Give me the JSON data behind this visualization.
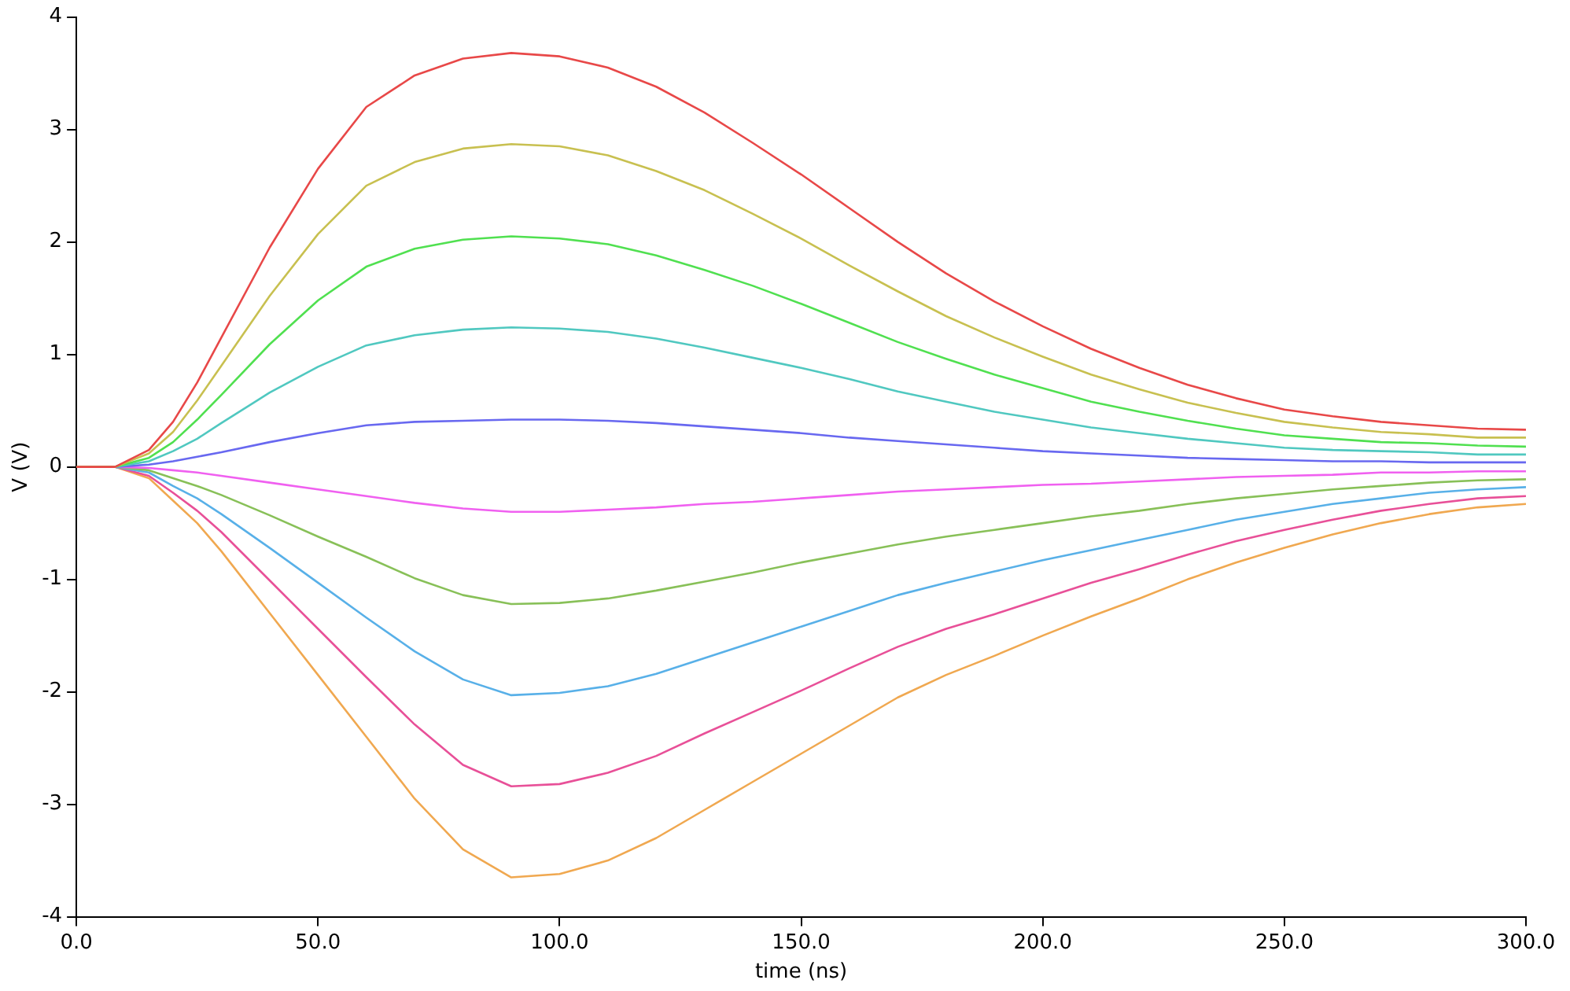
{
  "chart_data": {
    "type": "line",
    "xlabel": "time (ns)",
    "ylabel": "V (V)",
    "x": [
      0,
      8,
      15,
      20,
      25,
      30,
      40,
      50,
      60,
      70,
      80,
      90,
      100,
      110,
      120,
      130,
      140,
      150,
      160,
      170,
      180,
      190,
      200,
      210,
      220,
      230,
      240,
      250,
      260,
      270,
      280,
      290,
      300
    ],
    "xlim": [
      0,
      300
    ],
    "xticks": [
      {
        "value": 0,
        "label": "0.0"
      },
      {
        "value": 50,
        "label": "50.0"
      },
      {
        "value": 100,
        "label": "100.0"
      },
      {
        "value": 150,
        "label": "150.0"
      },
      {
        "value": 200,
        "label": "200.0"
      },
      {
        "value": 250,
        "label": "250.0"
      },
      {
        "value": 300,
        "label": "300.0"
      }
    ],
    "ylim": [
      -4,
      4
    ],
    "yticks": [
      -4,
      -3,
      -2,
      -1,
      0,
      1,
      2,
      3,
      4
    ],
    "grid": false,
    "legend": false,
    "marker": "none",
    "line_style": "solid",
    "series": [
      {
        "color": "#e84848",
        "values": [
          0,
          0,
          0.15,
          0.4,
          0.75,
          1.15,
          1.95,
          2.65,
          3.2,
          3.48,
          3.63,
          3.68,
          3.65,
          3.55,
          3.38,
          3.15,
          2.88,
          2.6,
          2.3,
          2.0,
          1.72,
          1.47,
          1.25,
          1.05,
          0.88,
          0.73,
          0.61,
          0.51,
          0.45,
          0.4,
          0.37,
          0.34,
          0.33
        ]
      },
      {
        "color": "#c8c050",
        "values": [
          0,
          0,
          0.12,
          0.31,
          0.59,
          0.9,
          1.52,
          2.07,
          2.5,
          2.71,
          2.83,
          2.87,
          2.85,
          2.77,
          2.63,
          2.46,
          2.25,
          2.03,
          1.79,
          1.56,
          1.34,
          1.15,
          0.98,
          0.82,
          0.69,
          0.57,
          0.48,
          0.4,
          0.35,
          0.31,
          0.29,
          0.26,
          0.26
        ]
      },
      {
        "color": "#50e050",
        "values": [
          0,
          0,
          0.08,
          0.22,
          0.42,
          0.64,
          1.09,
          1.48,
          1.78,
          1.94,
          2.02,
          2.05,
          2.03,
          1.98,
          1.88,
          1.75,
          1.61,
          1.45,
          1.28,
          1.11,
          0.96,
          0.82,
          0.7,
          0.58,
          0.49,
          0.41,
          0.34,
          0.28,
          0.25,
          0.22,
          0.21,
          0.19,
          0.18
        ]
      },
      {
        "color": "#50c8c0",
        "values": [
          0,
          0,
          0.05,
          0.14,
          0.25,
          0.39,
          0.66,
          0.89,
          1.08,
          1.17,
          1.22,
          1.24,
          1.23,
          1.2,
          1.14,
          1.06,
          0.97,
          0.88,
          0.78,
          0.67,
          0.58,
          0.49,
          0.42,
          0.35,
          0.3,
          0.25,
          0.21,
          0.17,
          0.15,
          0.14,
          0.13,
          0.11,
          0.11
        ]
      },
      {
        "color": "#6868f0",
        "values": [
          0,
          0,
          0.02,
          0.05,
          0.09,
          0.13,
          0.22,
          0.3,
          0.37,
          0.4,
          0.41,
          0.42,
          0.42,
          0.41,
          0.39,
          0.36,
          0.33,
          0.3,
          0.26,
          0.23,
          0.2,
          0.17,
          0.14,
          0.12,
          0.1,
          0.08,
          0.07,
          0.06,
          0.05,
          0.05,
          0.04,
          0.04,
          0.04
        ]
      },
      {
        "color": "#f060f0",
        "values": [
          0,
          0,
          -0.01,
          -0.03,
          -0.05,
          -0.08,
          -0.14,
          -0.2,
          -0.26,
          -0.32,
          -0.37,
          -0.4,
          -0.4,
          -0.38,
          -0.36,
          -0.33,
          -0.31,
          -0.28,
          -0.25,
          -0.22,
          -0.2,
          -0.18,
          -0.16,
          -0.15,
          -0.13,
          -0.11,
          -0.09,
          -0.08,
          -0.07,
          -0.05,
          -0.05,
          -0.04,
          -0.04
        ]
      },
      {
        "color": "#88c058",
        "values": [
          0,
          0,
          -0.03,
          -0.1,
          -0.17,
          -0.25,
          -0.43,
          -0.62,
          -0.8,
          -0.99,
          -1.14,
          -1.22,
          -1.21,
          -1.17,
          -1.1,
          -1.02,
          -0.94,
          -0.85,
          -0.77,
          -0.69,
          -0.62,
          -0.56,
          -0.5,
          -0.44,
          -0.39,
          -0.33,
          -0.28,
          -0.24,
          -0.2,
          -0.17,
          -0.14,
          -0.12,
          -0.11
        ]
      },
      {
        "color": "#58b0e8",
        "values": [
          0,
          0,
          -0.05,
          -0.17,
          -0.28,
          -0.42,
          -0.72,
          -1.03,
          -1.34,
          -1.64,
          -1.89,
          -2.03,
          -2.01,
          -1.95,
          -1.84,
          -1.7,
          -1.56,
          -1.42,
          -1.28,
          -1.14,
          -1.03,
          -0.93,
          -0.83,
          -0.74,
          -0.65,
          -0.56,
          -0.47,
          -0.4,
          -0.33,
          -0.28,
          -0.23,
          -0.2,
          -0.18
        ]
      },
      {
        "color": "#e85098",
        "values": [
          0,
          0,
          -0.08,
          -0.23,
          -0.39,
          -0.58,
          -1.01,
          -1.44,
          -1.87,
          -2.29,
          -2.65,
          -2.84,
          -2.82,
          -2.72,
          -2.57,
          -2.37,
          -2.18,
          -1.99,
          -1.79,
          -1.6,
          -1.44,
          -1.31,
          -1.17,
          -1.03,
          -0.91,
          -0.78,
          -0.66,
          -0.56,
          -0.47,
          -0.39,
          -0.33,
          -0.28,
          -0.26
        ]
      },
      {
        "color": "#f0a850",
        "values": [
          0,
          0,
          -0.1,
          -0.3,
          -0.5,
          -0.75,
          -1.3,
          -1.85,
          -2.4,
          -2.95,
          -3.4,
          -3.65,
          -3.62,
          -3.5,
          -3.3,
          -3.05,
          -2.8,
          -2.55,
          -2.3,
          -2.05,
          -1.85,
          -1.68,
          -1.5,
          -1.33,
          -1.17,
          -1,
          -0.85,
          -0.72,
          -0.6,
          -0.5,
          -0.42,
          -0.36,
          -0.33
        ]
      }
    ]
  }
}
